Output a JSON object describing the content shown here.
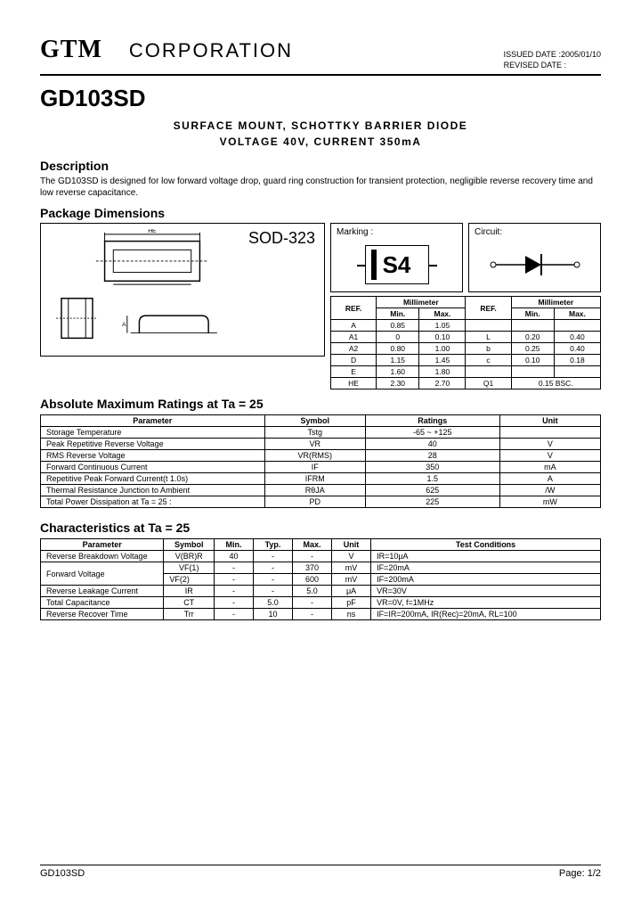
{
  "header": {
    "logo1": "GTM",
    "logo2": "CORPORATION",
    "issued_label": "ISSUED DATE :",
    "issued_date": "2005/01/10",
    "revised_label": "REVISED DATE :"
  },
  "part_number": "GD103SD",
  "subtitle_line1": "SURFACE MOUNT, SCHOTTKY BARRIER DIODE",
  "subtitle_line2": "VOLTAGE 40V, CURRENT 350mA",
  "description_h": "Description",
  "description_text": "The GD103SD is designed for low forward voltage drop, guard ring construction for transient protection, negligible reverse recovery time and low reverse capacitance.",
  "package_h": "Package Dimensions",
  "package_label": "SOD-323",
  "marking_label": "Marking :",
  "marking_code": "S4",
  "circuit_label": "Circuit:",
  "dim_table": {
    "ref": "REF.",
    "mm": "Millimeter",
    "min": "Min.",
    "max": "Max.",
    "rows_left": [
      [
        "A",
        "0.85",
        "1.05"
      ],
      [
        "A1",
        "0",
        "0.10"
      ],
      [
        "A2",
        "0.80",
        "1.00"
      ],
      [
        "D",
        "1.15",
        "1.45"
      ],
      [
        "E",
        "1.60",
        "1.80"
      ],
      [
        "HE",
        "2.30",
        "2.70"
      ]
    ],
    "rows_right": [
      [
        "",
        "",
        ""
      ],
      [
        "L",
        "0.20",
        "0.40"
      ],
      [
        "b",
        "0.25",
        "0.40"
      ],
      [
        "c",
        "0.10",
        "0.18"
      ],
      [
        "",
        "",
        ""
      ],
      [
        "Q1",
        "0.15 BSC.",
        ""
      ]
    ]
  },
  "amr_h": "Absolute Maximum Ratings at Ta = 25",
  "amr_cols": [
    "Parameter",
    "Symbol",
    "Ratings",
    "Unit"
  ],
  "amr_rows": [
    [
      "Storage Temperature",
      "Tstg",
      "-65 ~ +125",
      ""
    ],
    [
      "Peak Repetitive Reverse Voltage",
      "VR",
      "40",
      "V"
    ],
    [
      "RMS Reverse Voltage",
      "VR(RMS)",
      "28",
      "V"
    ],
    [
      "Forward Continuous Current",
      "IF",
      "350",
      "mA"
    ],
    [
      "Repetitive Peak Forward Current(t   1.0s)",
      "IFRM",
      "1.5",
      "A"
    ],
    [
      "Thermal Resistance Junction to Ambient",
      "RθJA",
      "625",
      "/W"
    ],
    [
      "Total Power Dissipation at Ta = 25 :",
      "PD",
      "225",
      "mW"
    ]
  ],
  "char_h": "Characteristics at Ta = 25",
  "char_cols": [
    "Parameter",
    "Symbol",
    "Min.",
    "Typ.",
    "Max.",
    "Unit",
    "Test Conditions"
  ],
  "char_rows": [
    [
      "Reverse Breakdown Voltage",
      "V(BR)R",
      "40",
      "-",
      "-",
      "V",
      "IR=10μA"
    ],
    [
      "Forward Voltage",
      "VF(1)",
      "-",
      "-",
      "370",
      "mV",
      "IF=20mA"
    ],
    [
      "",
      "VF(2)",
      "-",
      "-",
      "600",
      "mV",
      "IF=200mA"
    ],
    [
      "Reverse Leakage Current",
      "IR",
      "-",
      "-",
      "5.0",
      "μA",
      "VR=30V"
    ],
    [
      "Total Capacitance",
      "CT",
      "-",
      "5.0",
      "-",
      "pF",
      "VR=0V, f=1MHz"
    ],
    [
      "Reverse Recover Time",
      "Trr",
      "-",
      "10",
      "-",
      "ns",
      "IF=IR=200mA, IR(Rec)=20mA, RL=100"
    ]
  ],
  "footer": {
    "left": "GD103SD",
    "right": "Page: 1/2"
  },
  "colors": {
    "line": "#000000",
    "bg": "#ffffff"
  }
}
